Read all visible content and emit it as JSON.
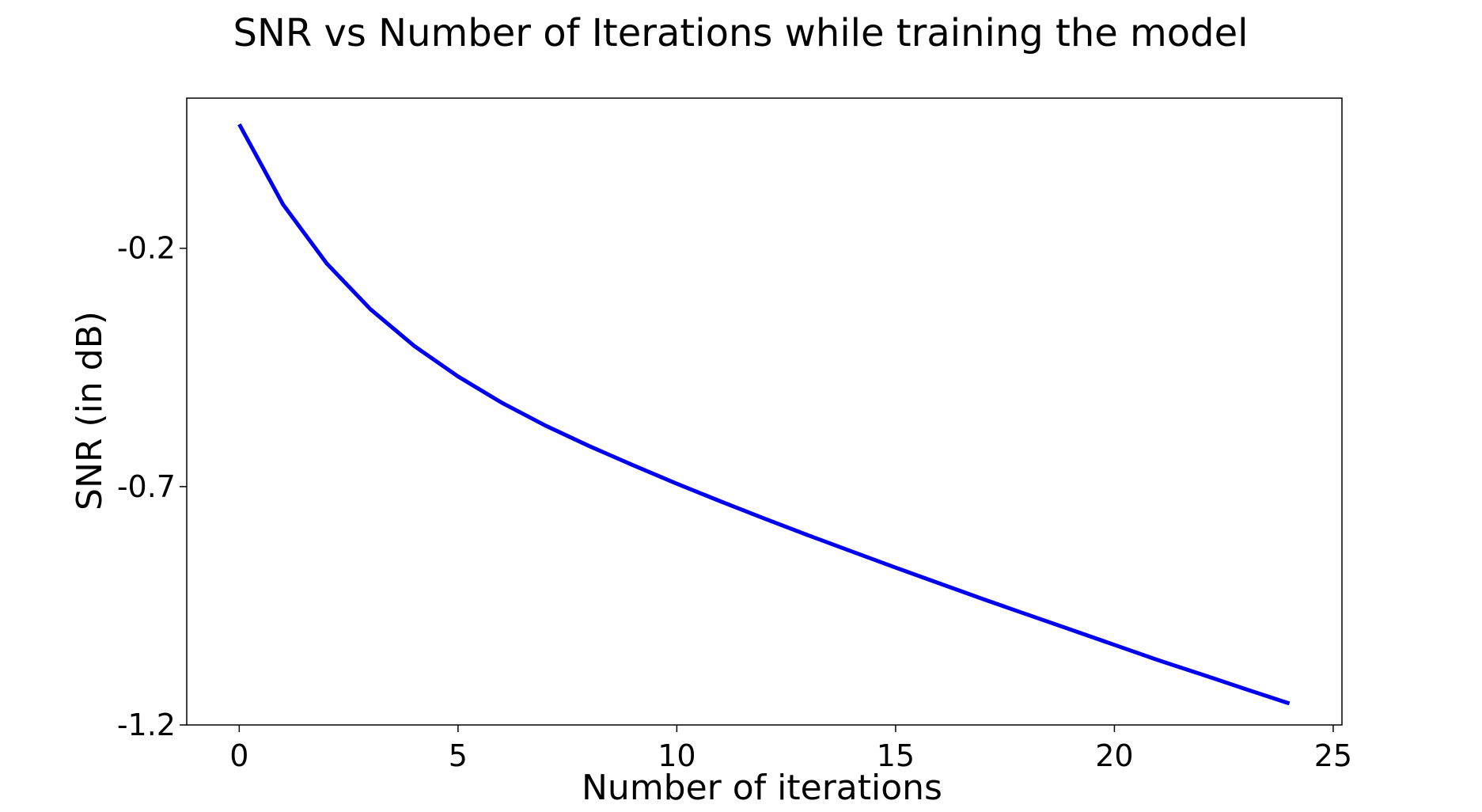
{
  "chart_data": {
    "type": "line",
    "title": "SNR vs Number of Iterations while training the model",
    "xlabel": "Number of iterations",
    "ylabel": "SNR (in dB)",
    "xlim": [
      -1.2,
      25.2
    ],
    "ylim": [
      -1.2,
      0.115
    ],
    "x_ticks": [
      0,
      5,
      10,
      15,
      20,
      25
    ],
    "x_tick_labels": [
      "0",
      "5",
      "10",
      "15",
      "20",
      "25"
    ],
    "y_ticks": [
      -0.2,
      -0.7,
      -1.2
    ],
    "y_tick_labels": [
      "-0.2",
      "-0.7",
      "-1.2"
    ],
    "grid": false,
    "legend": "none",
    "series": [
      {
        "color": "#0000ee",
        "x": [
          0,
          1,
          2,
          3,
          4,
          5,
          6,
          7,
          8,
          9,
          10,
          11,
          12,
          13,
          14,
          15,
          16,
          17,
          18,
          19,
          20,
          21,
          22,
          23,
          24
        ],
        "y": [
          0.06,
          -0.108,
          -0.232,
          -0.328,
          -0.405,
          -0.469,
          -0.524,
          -0.572,
          -0.615,
          -0.655,
          -0.694,
          -0.731,
          -0.767,
          -0.802,
          -0.836,
          -0.87,
          -0.903,
          -0.936,
          -0.968,
          -1.0,
          -1.032,
          -1.064,
          -1.094,
          -1.125,
          -1.155
        ]
      }
    ]
  }
}
